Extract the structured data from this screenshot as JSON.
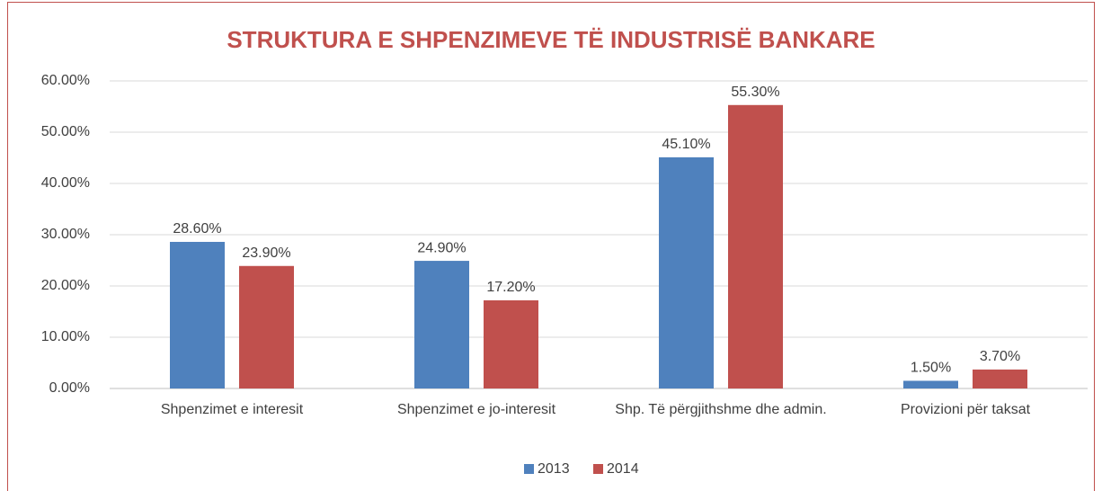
{
  "chart_data": {
    "type": "bar",
    "title": "STRUKTURA E SHPENZIMEVE TË INDUSTRISË BANKARE",
    "categories": [
      "Shpenzimet e interesit",
      "Shpenzimet e jo-interesit",
      "Shp. Të përgjithshme dhe admin.",
      "Provizioni për taksat"
    ],
    "series": [
      {
        "name": "2013",
        "color": "#4f81bd",
        "values": [
          28.6,
          24.9,
          45.1,
          1.5
        ],
        "value_labels": [
          "28.60%",
          "24.90%",
          "45.10%",
          "1.50%"
        ]
      },
      {
        "name": "2014",
        "color": "#c0504d",
        "values": [
          23.9,
          17.2,
          55.3,
          3.7
        ],
        "value_labels": [
          "23.90%",
          "17.20%",
          "55.30%",
          "3.70%"
        ]
      }
    ],
    "ylim": [
      0,
      60
    ],
    "yticks": [
      {
        "value": 0,
        "label": "0.00%"
      },
      {
        "value": 10,
        "label": "10.00%"
      },
      {
        "value": 20,
        "label": "20.00%"
      },
      {
        "value": 30,
        "label": "30.00%"
      },
      {
        "value": 40,
        "label": "40.00%"
      },
      {
        "value": 50,
        "label": "50.00%"
      },
      {
        "value": 60,
        "label": "60.00%"
      }
    ],
    "grid": true,
    "legend": "bottom"
  }
}
